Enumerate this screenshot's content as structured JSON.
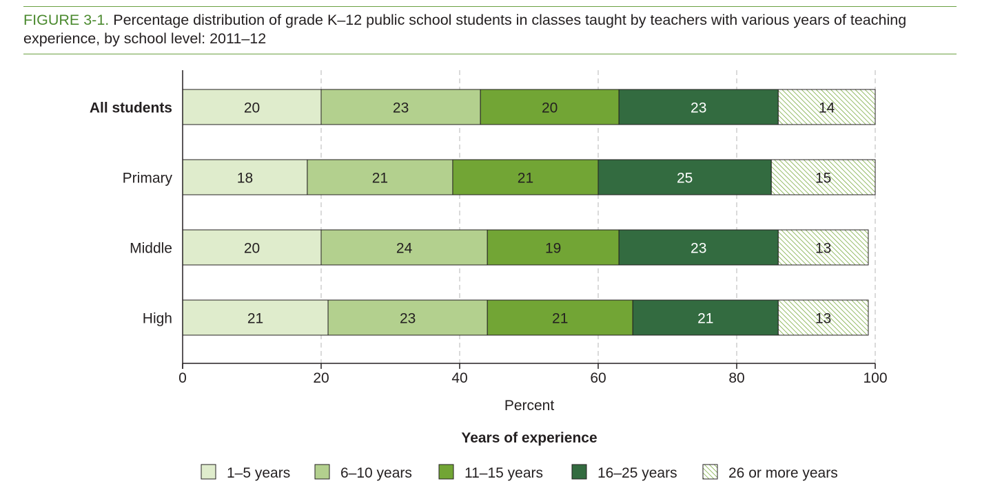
{
  "figure": {
    "label": "FIGURE 3-1.",
    "title": " Percentage distribution of grade K–12 public school students in classes taught by teachers with various years of teaching experience, by school level: 2011–12"
  },
  "chart_data": {
    "type": "bar",
    "orientation": "horizontal",
    "stacked": true,
    "categories": [
      "All students",
      "Primary",
      "Middle",
      "High"
    ],
    "highlight_category": "All students",
    "series": [
      {
        "name": "1–5 years",
        "values": [
          20,
          18,
          20,
          21
        ],
        "color": "#dfeccc",
        "pattern": "solid"
      },
      {
        "name": "6–10 years",
        "values": [
          23,
          21,
          24,
          23
        ],
        "color": "#b3d08e",
        "pattern": "solid"
      },
      {
        "name": "11–15 years",
        "values": [
          20,
          21,
          19,
          21
        ],
        "color": "#72a535",
        "pattern": "solid"
      },
      {
        "name": "16–25 years",
        "values": [
          23,
          25,
          23,
          21
        ],
        "color": "#336b40",
        "pattern": "solid"
      },
      {
        "name": "26 or more years",
        "values": [
          14,
          15,
          13,
          13
        ],
        "color": "#72a535",
        "pattern": "hatch"
      }
    ],
    "value_labels": [
      [
        "20",
        "23",
        "20",
        "23",
        "14"
      ],
      [
        "18",
        "21",
        "21",
        "25",
        "15"
      ],
      [
        "20",
        "24",
        "19",
        "23",
        "13"
      ],
      [
        "21",
        "23",
        "21",
        "21",
        "13"
      ]
    ],
    "xlabel": "Percent",
    "xlim": [
      0,
      100
    ],
    "xticks": [
      0,
      20,
      40,
      60,
      80,
      100
    ],
    "grid": "vertical dashed",
    "legend_title": "Years of experience",
    "legend_position": "bottom"
  }
}
